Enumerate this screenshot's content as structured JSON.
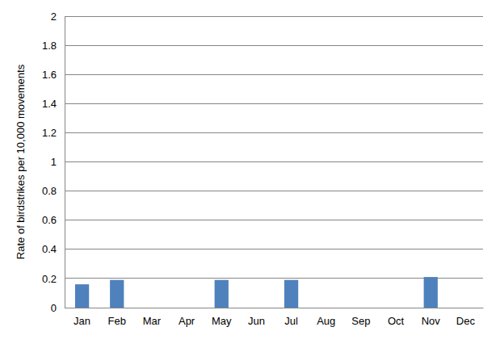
{
  "chart_data": {
    "type": "bar",
    "y_label": "Rate of birdstrikes per 10,000 movements",
    "categories": [
      "Jan",
      "Feb",
      "Mar",
      "Apr",
      "May",
      "Jun",
      "Jul",
      "Aug",
      "Sep",
      "Oct",
      "Nov",
      "Dec"
    ],
    "values": [
      0.16,
      0.19,
      0,
      0,
      0.19,
      0,
      0.19,
      0,
      0,
      0,
      0.21,
      0
    ],
    "color": "#4f81bd",
    "ylim": [
      0,
      2
    ],
    "yticks": [
      0,
      0.2,
      0.4,
      0.6,
      0.8,
      1,
      1.2,
      1.4,
      1.6,
      1.8,
      2
    ],
    "grid": true
  }
}
